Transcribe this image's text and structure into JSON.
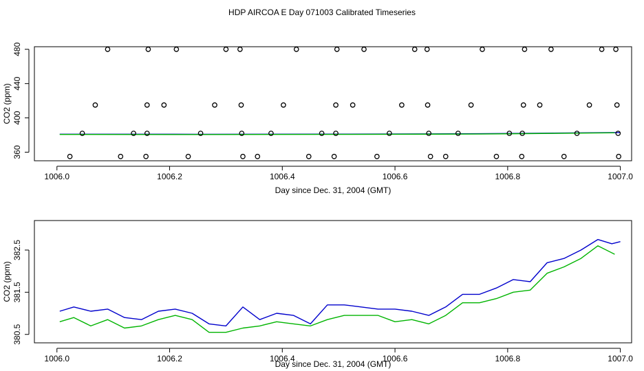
{
  "figure": {
    "title": "HDP AIRCOA E  Day 071003  Calibrated Timeseries"
  },
  "colors": {
    "axis": "#000000",
    "blue_series": "#0000cc",
    "green_series": "#00b400",
    "points": "#000000"
  },
  "chart_data": [
    {
      "type": "scatter",
      "xlabel": "Day since Dec. 31, 2004 (GMT)",
      "ylabel": "CO2 (ppm)",
      "xlim": [
        1005.96,
        1007.02
      ],
      "ylim": [
        350,
        483
      ],
      "x_ticks": [
        1006.0,
        1006.2,
        1006.4,
        1006.6,
        1006.8,
        1007.0
      ],
      "x_tick_labels": [
        "1006.0",
        "1006.2",
        "1006.4",
        "1006.6",
        "1006.8",
        "1007.0"
      ],
      "y_ticks": [
        360,
        400,
        440,
        480
      ],
      "y_tick_labels": [
        "360",
        "400",
        "440",
        "480"
      ],
      "grid": false,
      "points": [
        {
          "x": 1006.09,
          "y": 480
        },
        {
          "x": 1006.162,
          "y": 480
        },
        {
          "x": 1006.212,
          "y": 480
        },
        {
          "x": 1006.3,
          "y": 480
        },
        {
          "x": 1006.325,
          "y": 480
        },
        {
          "x": 1006.425,
          "y": 480
        },
        {
          "x": 1006.497,
          "y": 480
        },
        {
          "x": 1006.545,
          "y": 480
        },
        {
          "x": 1006.635,
          "y": 480
        },
        {
          "x": 1006.657,
          "y": 480
        },
        {
          "x": 1006.755,
          "y": 480
        },
        {
          "x": 1006.83,
          "y": 480
        },
        {
          "x": 1006.877,
          "y": 480
        },
        {
          "x": 1006.967,
          "y": 480
        },
        {
          "x": 1006.992,
          "y": 480
        },
        {
          "x": 1006.068,
          "y": 415
        },
        {
          "x": 1006.16,
          "y": 415
        },
        {
          "x": 1006.19,
          "y": 415
        },
        {
          "x": 1006.28,
          "y": 415
        },
        {
          "x": 1006.327,
          "y": 415
        },
        {
          "x": 1006.402,
          "y": 415
        },
        {
          "x": 1006.495,
          "y": 415
        },
        {
          "x": 1006.525,
          "y": 415
        },
        {
          "x": 1006.612,
          "y": 415
        },
        {
          "x": 1006.658,
          "y": 415
        },
        {
          "x": 1006.735,
          "y": 415
        },
        {
          "x": 1006.828,
          "y": 415
        },
        {
          "x": 1006.857,
          "y": 415
        },
        {
          "x": 1006.945,
          "y": 415
        },
        {
          "x": 1006.994,
          "y": 415
        },
        {
          "x": 1006.045,
          "y": 382
        },
        {
          "x": 1006.136,
          "y": 382
        },
        {
          "x": 1006.16,
          "y": 382
        },
        {
          "x": 1006.255,
          "y": 382
        },
        {
          "x": 1006.328,
          "y": 382
        },
        {
          "x": 1006.38,
          "y": 382
        },
        {
          "x": 1006.47,
          "y": 382
        },
        {
          "x": 1006.495,
          "y": 382
        },
        {
          "x": 1006.59,
          "y": 382
        },
        {
          "x": 1006.66,
          "y": 382
        },
        {
          "x": 1006.712,
          "y": 382
        },
        {
          "x": 1006.803,
          "y": 382
        },
        {
          "x": 1006.826,
          "y": 382
        },
        {
          "x": 1006.923,
          "y": 382
        },
        {
          "x": 1006.996,
          "y": 382
        },
        {
          "x": 1006.023,
          "y": 355
        },
        {
          "x": 1006.113,
          "y": 355
        },
        {
          "x": 1006.158,
          "y": 355
        },
        {
          "x": 1006.233,
          "y": 355
        },
        {
          "x": 1006.33,
          "y": 355
        },
        {
          "x": 1006.356,
          "y": 355
        },
        {
          "x": 1006.447,
          "y": 355
        },
        {
          "x": 1006.492,
          "y": 355
        },
        {
          "x": 1006.568,
          "y": 355
        },
        {
          "x": 1006.663,
          "y": 355
        },
        {
          "x": 1006.69,
          "y": 355
        },
        {
          "x": 1006.78,
          "y": 355
        },
        {
          "x": 1006.825,
          "y": 355
        },
        {
          "x": 1006.9,
          "y": 355
        },
        {
          "x": 1006.997,
          "y": 355
        }
      ],
      "series": [
        {
          "color": "#0000cc",
          "x": [
            1006.005,
            1006.25,
            1006.5,
            1006.75,
            1007.0
          ],
          "values": [
            381.0,
            380.9,
            381.1,
            381.6,
            382.9
          ]
        },
        {
          "color": "#00b400",
          "x": [
            1006.005,
            1006.25,
            1006.5,
            1006.75,
            1006.99
          ],
          "values": [
            380.7,
            380.6,
            380.8,
            381.2,
            382.6
          ]
        }
      ]
    },
    {
      "type": "line",
      "xlabel": "Day since Dec. 31, 2004 (GMT)",
      "ylabel": "CO2 (ppm)",
      "xlim": [
        1005.96,
        1007.02
      ],
      "ylim": [
        380.3,
        383.2
      ],
      "x_ticks": [
        1006.0,
        1006.2,
        1006.4,
        1006.6,
        1006.8,
        1007.0
      ],
      "x_tick_labels": [
        "1006.0",
        "1006.2",
        "1006.4",
        "1006.6",
        "1006.8",
        "1007.0"
      ],
      "y_ticks": [
        380.5,
        381.5,
        382.5
      ],
      "y_tick_labels": [
        "380.5",
        "381.5",
        "382.5"
      ],
      "grid": false,
      "series": [
        {
          "color": "#0000cc",
          "x": [
            1006.005,
            1006.03,
            1006.06,
            1006.09,
            1006.12,
            1006.15,
            1006.18,
            1006.21,
            1006.24,
            1006.27,
            1006.3,
            1006.33,
            1006.36,
            1006.39,
            1006.42,
            1006.45,
            1006.48,
            1006.51,
            1006.54,
            1006.57,
            1006.6,
            1006.63,
            1006.66,
            1006.69,
            1006.72,
            1006.75,
            1006.78,
            1006.81,
            1006.84,
            1006.87,
            1006.9,
            1006.93,
            1006.96,
            1006.985,
            1007.0
          ],
          "values": [
            381.05,
            381.15,
            381.05,
            381.1,
            380.9,
            380.85,
            381.05,
            381.1,
            381.0,
            380.75,
            380.7,
            381.15,
            380.85,
            381.0,
            380.95,
            380.75,
            381.2,
            381.2,
            381.15,
            381.1,
            381.1,
            381.05,
            380.95,
            381.15,
            381.45,
            381.45,
            381.6,
            381.8,
            381.75,
            382.2,
            382.3,
            382.5,
            382.75,
            382.65,
            382.7
          ]
        },
        {
          "color": "#00b400",
          "x": [
            1006.005,
            1006.03,
            1006.06,
            1006.09,
            1006.12,
            1006.15,
            1006.18,
            1006.21,
            1006.24,
            1006.27,
            1006.3,
            1006.33,
            1006.36,
            1006.39,
            1006.42,
            1006.45,
            1006.48,
            1006.51,
            1006.54,
            1006.57,
            1006.6,
            1006.63,
            1006.66,
            1006.69,
            1006.72,
            1006.75,
            1006.78,
            1006.81,
            1006.84,
            1006.87,
            1006.9,
            1006.93,
            1006.96,
            1006.99
          ],
          "values": [
            380.8,
            380.9,
            380.7,
            380.85,
            380.65,
            380.7,
            380.85,
            380.95,
            380.85,
            380.55,
            380.55,
            380.65,
            380.7,
            380.8,
            380.75,
            380.7,
            380.85,
            380.95,
            380.95,
            380.95,
            380.8,
            380.85,
            380.75,
            380.95,
            381.25,
            381.25,
            381.35,
            381.5,
            381.55,
            381.95,
            382.1,
            382.3,
            382.6,
            382.4
          ]
        }
      ]
    }
  ]
}
